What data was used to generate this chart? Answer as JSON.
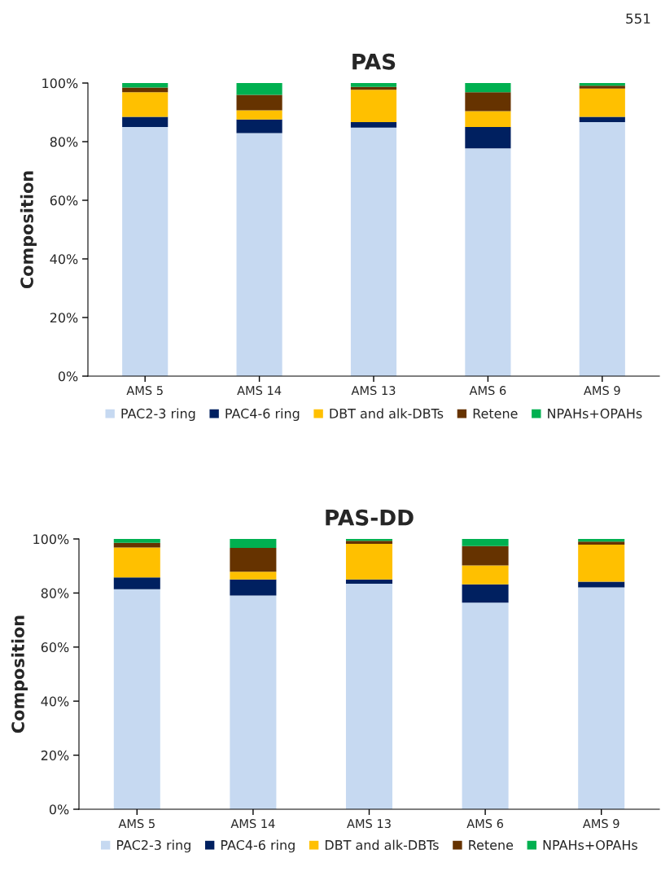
{
  "chart_data": [
    {
      "type": "bar",
      "title": "PAS",
      "ylabel": "Composition",
      "stacked": true,
      "legend": "bottom",
      "grid": false,
      "annotations": [
        "551"
      ],
      "categories": [
        "AMS 5",
        "AMS 14",
        "AMS 13",
        "AMS 6",
        "AMS 9"
      ],
      "ylim": [
        0,
        100
      ],
      "yticks": [
        {
          "value": 0,
          "label": "0%"
        },
        {
          "value": 20,
          "label": "20%"
        },
        {
          "value": 40,
          "label": "40%"
        },
        {
          "value": 60,
          "label": "60%"
        },
        {
          "value": 80,
          "label": "80%"
        },
        {
          "value": 100,
          "label": "100%"
        }
      ],
      "series": [
        {
          "name": "PAC2-3 ring",
          "color": "#c6d9f1",
          "values": [
            85.0,
            82.9,
            84.8,
            77.7,
            86.7
          ]
        },
        {
          "name": "PAC4-6 ring",
          "color": "#002060",
          "values": [
            3.5,
            4.7,
            1.9,
            7.3,
            1.8
          ]
        },
        {
          "name": "DBT and alk-DBTs",
          "color": "#ffc000",
          "values": [
            8.4,
            3.1,
            11.0,
            5.4,
            9.6
          ]
        },
        {
          "name": "Retene",
          "color": "#663300",
          "values": [
            1.6,
            5.3,
            1.0,
            6.5,
            1.0
          ]
        },
        {
          "name": "NPAHs+OPAHs",
          "color": "#00b050",
          "values": [
            1.5,
            4.0,
            1.3,
            3.1,
            0.9
          ]
        }
      ]
    },
    {
      "type": "bar",
      "title": "PAS-DD",
      "ylabel": "Composition",
      "stacked": true,
      "legend": "bottom",
      "grid": false,
      "categories": [
        "AMS 5",
        "AMS 14",
        "AMS 13",
        "AMS 6",
        "AMS 9"
      ],
      "ylim": [
        0,
        100
      ],
      "yticks": [
        {
          "value": 0,
          "label": "0%"
        },
        {
          "value": 20,
          "label": "20%"
        },
        {
          "value": 40,
          "label": "40%"
        },
        {
          "value": 60,
          "label": "60%"
        },
        {
          "value": 80,
          "label": "80%"
        },
        {
          "value": 100,
          "label": "100%"
        }
      ],
      "series": [
        {
          "name": "PAC2-3 ring",
          "color": "#c6d9f1",
          "values": [
            81.4,
            79.1,
            83.4,
            76.4,
            82.1
          ]
        },
        {
          "name": "PAC4-6 ring",
          "color": "#002060",
          "values": [
            4.4,
            5.9,
            1.6,
            6.8,
            2.1
          ]
        },
        {
          "name": "DBT and alk-DBTs",
          "color": "#ffc000",
          "values": [
            11.0,
            2.9,
            13.2,
            7.0,
            13.7
          ]
        },
        {
          "name": "Retene",
          "color": "#663300",
          "values": [
            1.8,
            8.8,
            1.1,
            7.2,
            1.1
          ]
        },
        {
          "name": "NPAHs+OPAHs",
          "color": "#00b050",
          "values": [
            1.4,
            3.3,
            0.7,
            2.8,
            1.0
          ]
        }
      ]
    }
  ]
}
